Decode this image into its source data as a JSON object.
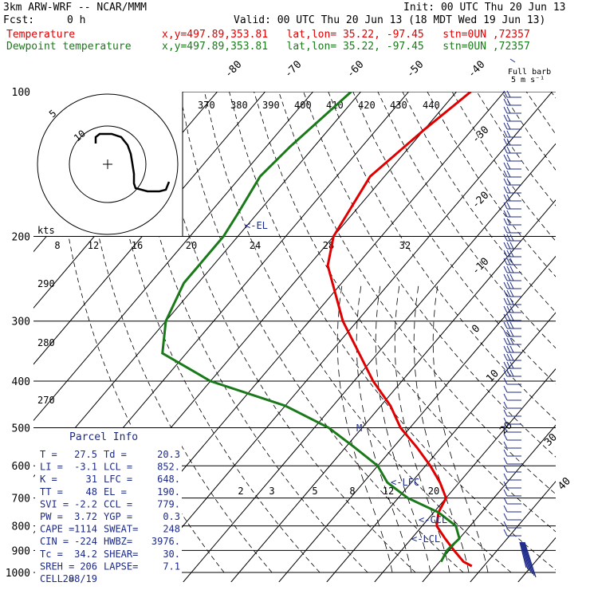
{
  "header": {
    "model": "3km ARW-WRF -- NCAR/MMM",
    "init": "Init: 00 UTC Thu 20 Jun 13",
    "fcst_label": "Fcst:",
    "fcst_value": "0 h",
    "valid": "Valid: 00 UTC Thu 20 Jun 13 (18 MDT Wed 19 Jun 13)",
    "temp_label": "Temperature",
    "temp_info": "x,y=497.89,353.81   lat,lon= 35.22, -97.45   stn=0UN ,72357",
    "dew_label": "Dewpoint temperature",
    "dew_info": "x,y=497.89,353.81   lat,lon= 35.22, -97.45   stn=0UN ,72357"
  },
  "colors": {
    "temperature": "#e00000",
    "dewpoint": "#1a7a1a",
    "annotation": "#1c2a8a",
    "grid": "#000000"
  },
  "chart_data": {
    "type": "line",
    "title": "",
    "pressure_levels": [
      100,
      200,
      300,
      400,
      500,
      600,
      700,
      800,
      900,
      1000
    ],
    "isotherm_labels": [
      "-80",
      "-70",
      "-60",
      "-50",
      "-40",
      "-30",
      "-20",
      "-10",
      "0",
      "10",
      "20",
      "30",
      "40"
    ],
    "theta_labels": [
      "370",
      "380",
      "390",
      "400",
      "410",
      "420",
      "430",
      "440"
    ],
    "height_labels": [
      "8",
      "12",
      "16",
      "20",
      "24",
      "28",
      "32"
    ],
    "extra_theta_labels": [
      "290",
      "280",
      "270"
    ],
    "mixing_ratio_labels": [
      "2",
      "3",
      "5",
      "8",
      "12",
      "20"
    ],
    "series": [
      {
        "name": "Temperature",
        "points": [
          [
            100,
            -57
          ],
          [
            120,
            -60
          ],
          [
            150,
            -63
          ],
          [
            200,
            -60
          ],
          [
            230,
            -56
          ],
          [
            300,
            -43
          ],
          [
            400,
            -26
          ],
          [
            450,
            -18
          ],
          [
            500,
            -12
          ],
          [
            550,
            -5
          ],
          [
            600,
            1
          ],
          [
            650,
            6
          ],
          [
            700,
            10
          ],
          [
            750,
            11
          ],
          [
            800,
            13
          ],
          [
            850,
            17
          ],
          [
            900,
            21
          ],
          [
            950,
            25
          ],
          [
            970,
            27.5
          ]
        ]
      },
      {
        "name": "Dewpoint temperature",
        "points": [
          [
            100,
            -82
          ],
          [
            130,
            -85
          ],
          [
            150,
            -86
          ],
          [
            180,
            -84
          ],
          [
            200,
            -83
          ],
          [
            250,
            -83
          ],
          [
            300,
            -80
          ],
          [
            350,
            -75
          ],
          [
            400,
            -60
          ],
          [
            450,
            -40
          ],
          [
            500,
            -27
          ],
          [
            550,
            -18
          ],
          [
            600,
            -10
          ],
          [
            650,
            -5
          ],
          [
            700,
            2
          ],
          [
            750,
            11
          ],
          [
            800,
            17
          ],
          [
            850,
            20
          ],
          [
            900,
            19.5
          ],
          [
            950,
            20.3
          ]
        ]
      }
    ],
    "levels": {
      "el": "<-EL",
      "lfc": "<-LFC",
      "ccl": "<-CCL",
      "lcl": "<-LCL",
      "m": "M"
    },
    "hodograph": {
      "ring_labels": [
        "5",
        "10"
      ],
      "units": "kts",
      "trace": [
        [
          -1,
          -2
        ],
        [
          -0.5,
          -5.5
        ],
        [
          -0.2,
          -9
        ],
        [
          1.5,
          -10.5
        ],
        [
          3.5,
          -10
        ],
        [
          5,
          -9.5
        ],
        [
          6.5,
          -9
        ],
        [
          8,
          -6
        ],
        [
          8.3,
          -5
        ],
        [
          8.8,
          -3.5
        ],
        [
          9.2,
          -2
        ]
      ]
    },
    "wind_legend": {
      "title": "Full barb",
      "subtitle": "5 m s⁻¹"
    }
  },
  "parcel_info": {
    "title": "Parcel Info",
    "rows": [
      [
        "T   =",
        "27.5",
        "Td =",
        "20.3"
      ],
      [
        "LI  =",
        "-3.1",
        "LCL =",
        "852."
      ],
      [
        "K   =",
        "31",
        "LFC =",
        "648."
      ],
      [
        "TT  =",
        "48",
        "EL  =",
        "190."
      ],
      [
        "SVI =",
        "-2.2",
        "CCL =",
        "779."
      ],
      [
        "PW  =",
        "3.72",
        "YGP =",
        "0.3"
      ],
      [
        "CAPE =",
        "1114",
        "SWEAT=",
        "248"
      ],
      [
        "CIN  =",
        "-224",
        "HWBZ=",
        "3976."
      ],
      [
        "Tc  =",
        "34.2",
        "SHEAR=",
        "30."
      ],
      [
        "SREH =",
        "206",
        "LAPSE=",
        "7.1"
      ],
      [
        "CELL =",
        "288/19",
        "",
        ""
      ]
    ]
  }
}
